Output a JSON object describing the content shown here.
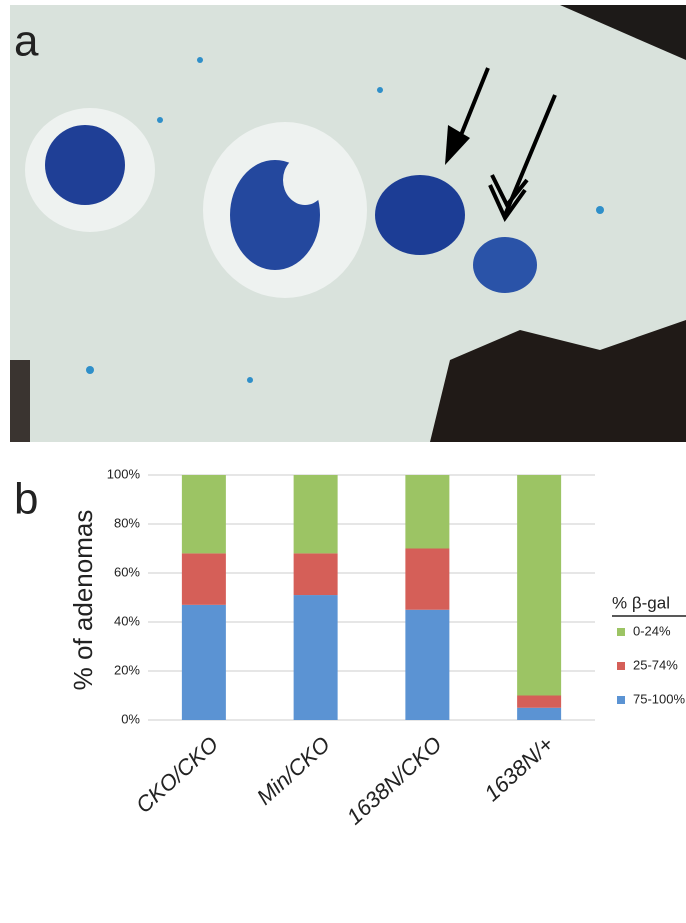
{
  "figure": {
    "panel_a": "a",
    "panel_b": "b"
  },
  "chart_data": {
    "type": "stacked_bar",
    "y_label": "% of adenomas",
    "legend_title": "% β-gal",
    "categories": [
      "CKO/CKO",
      "Min/CKO",
      "1638N/CKO",
      "1638N/+"
    ],
    "series": [
      {
        "name": "75-100%",
        "color": "#5b93d3",
        "values": [
          47,
          51,
          45,
          5
        ]
      },
      {
        "name": "25-74%",
        "color": "#d55f58",
        "values": [
          21,
          17,
          25,
          5
        ]
      },
      {
        "name": "0-24%",
        "color": "#9cc464",
        "values": [
          32,
          32,
          30,
          90
        ]
      }
    ],
    "ylim": [
      0,
      100
    ],
    "yticks": [
      {
        "value": 0,
        "label": "0%"
      },
      {
        "value": 20,
        "label": "20%"
      },
      {
        "value": 40,
        "label": "40%"
      },
      {
        "value": 60,
        "label": "60%"
      },
      {
        "value": 80,
        "label": "80%"
      },
      {
        "value": 100,
        "label": "100%"
      }
    ],
    "grid": true
  }
}
